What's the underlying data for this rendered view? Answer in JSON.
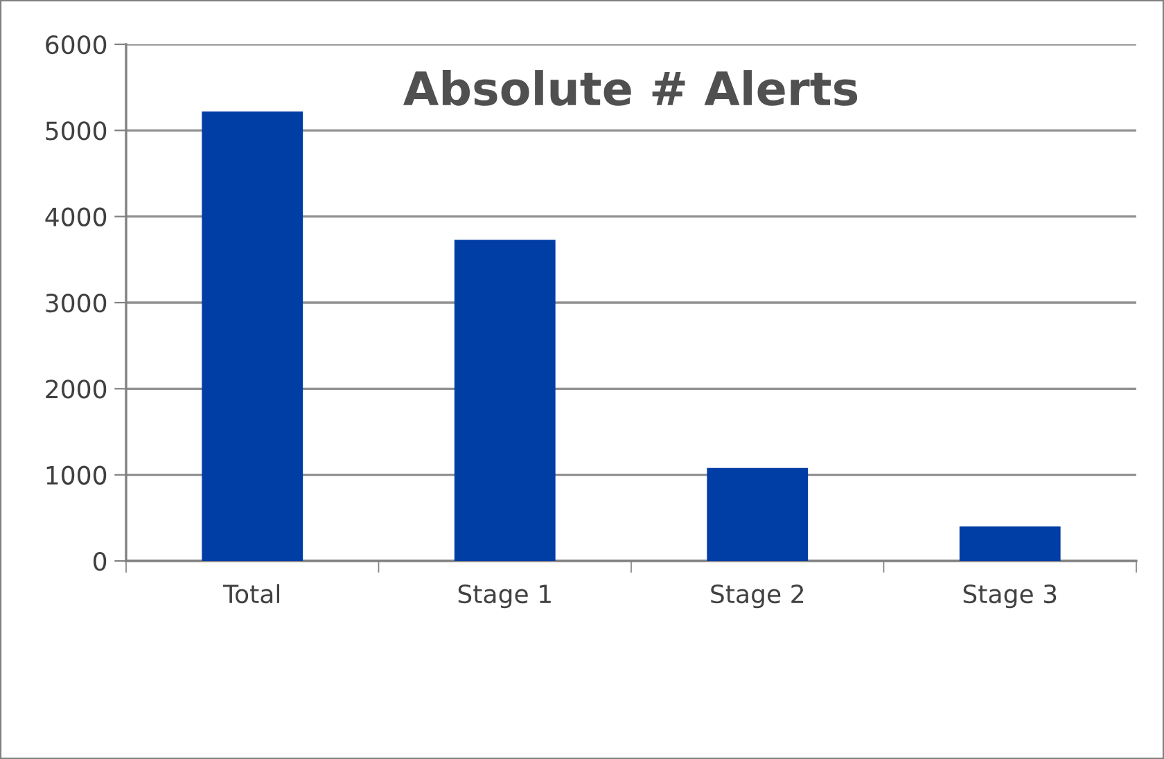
{
  "chart_data": {
    "type": "bar",
    "title": "Absolute # Alerts",
    "categories": [
      "Total",
      "Stage 1",
      "Stage 2",
      "Stage 3"
    ],
    "values": [
      5220,
      3730,
      1080,
      400
    ],
    "color": "#003da5",
    "ylim": [
      0,
      6000
    ],
    "yticks": [
      0,
      1000,
      2000,
      3000,
      4000,
      5000,
      6000
    ],
    "grid": "y"
  }
}
